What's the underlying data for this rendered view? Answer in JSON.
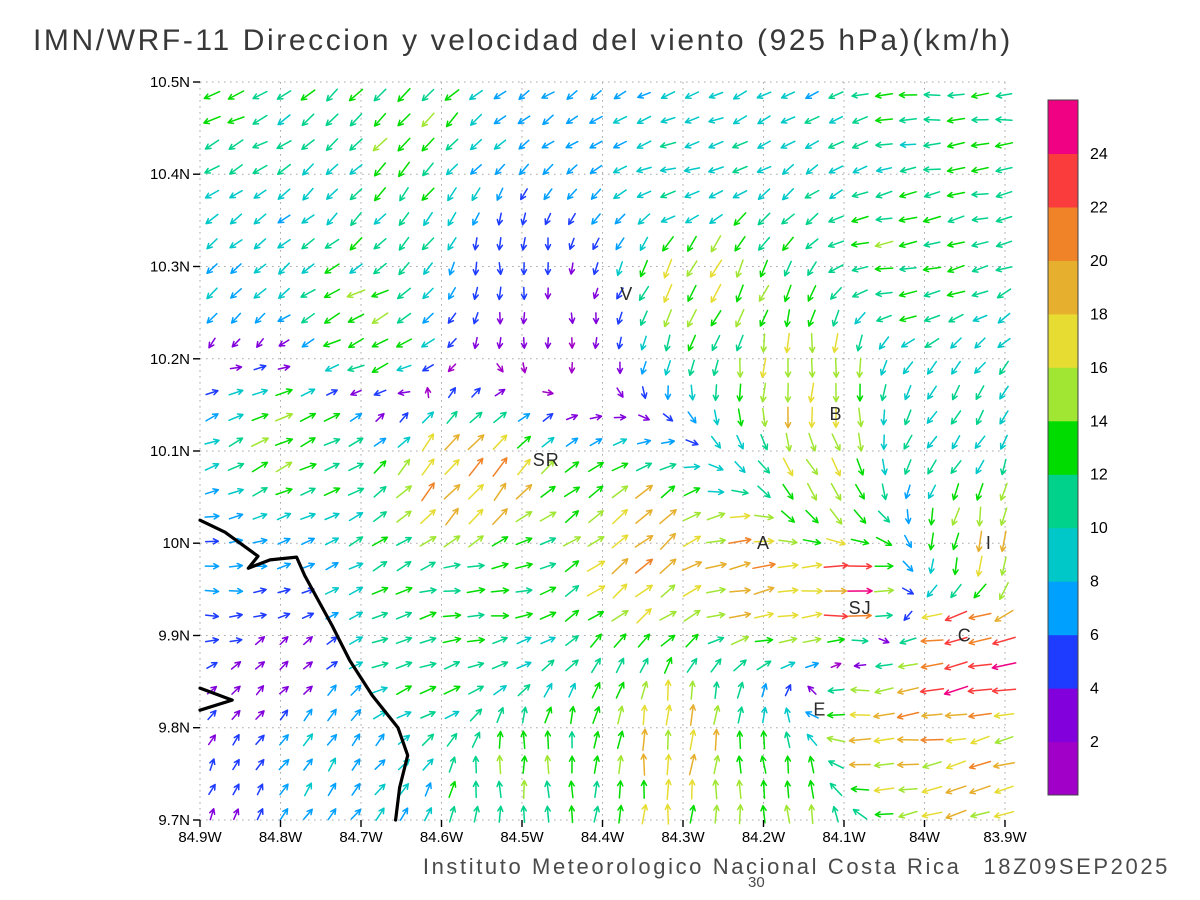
{
  "title": "IMN/WRF-11 Direccion y velocidad del viento (925 hPa)(km/h)",
  "footer": {
    "credit": "Instituto Meteorologico Nacional Costa Rica",
    "timestamp": "18Z09SEP2025",
    "run_label": "30"
  },
  "chart_data": {
    "type": "vector_field",
    "model": "IMN/WRF-11",
    "variable": "Direccion y velocidad del viento",
    "level": "925 hPa",
    "units": "km/h",
    "valid_time": "18Z09SEP2025",
    "forecast_hour": "30",
    "lon_range": [
      -84.9,
      -83.9
    ],
    "lat_range": [
      9.7,
      10.5
    ],
    "grid_step_deg": 0.1,
    "x_ticks": [
      {
        "lon": -84.9,
        "label": "84.9W"
      },
      {
        "lon": -84.8,
        "label": "84.8W"
      },
      {
        "lon": -84.7,
        "label": "84.7W"
      },
      {
        "lon": -84.6,
        "label": "84.6W"
      },
      {
        "lon": -84.5,
        "label": "84.5W"
      },
      {
        "lon": -84.4,
        "label": "84.4W"
      },
      {
        "lon": -84.3,
        "label": "84.3W"
      },
      {
        "lon": -84.2,
        "label": "84.2W"
      },
      {
        "lon": -84.1,
        "label": "84.1W"
      },
      {
        "lon": -84.0,
        "label": "84W"
      },
      {
        "lon": -83.9,
        "label": "83.9W"
      }
    ],
    "y_ticks": [
      {
        "lat": 10.5,
        "label": "10.5N"
      },
      {
        "lat": 10.4,
        "label": "10.4N"
      },
      {
        "lat": 10.3,
        "label": "10.3N"
      },
      {
        "lat": 10.2,
        "label": "10.2N"
      },
      {
        "lat": 10.1,
        "label": "10.1N"
      },
      {
        "lat": 10.0,
        "label": "10N"
      },
      {
        "lat": 9.9,
        "label": "9.9N"
      },
      {
        "lat": 9.8,
        "label": "9.8N"
      },
      {
        "lat": 9.7,
        "label": "9.7N"
      }
    ],
    "colorbar": {
      "values": [
        2,
        4,
        6,
        8,
        10,
        12,
        14,
        16,
        18,
        20,
        22,
        24
      ],
      "colors": [
        "#A000C8",
        "#8200DC",
        "#1E3CFF",
        "#00A0FF",
        "#00C8C8",
        "#00D28C",
        "#00DC00",
        "#A0E632",
        "#E6DC32",
        "#E6AF2D",
        "#F08228",
        "#FA3C3C",
        "#F00082"
      ]
    },
    "city_labels": [
      {
        "text": "V",
        "lon": -84.37,
        "lat": 10.27
      },
      {
        "text": "B",
        "lon": -84.11,
        "lat": 10.14
      },
      {
        "text": "SR",
        "lon": -84.47,
        "lat": 10.09
      },
      {
        "text": "A",
        "lon": -84.2,
        "lat": 10.0
      },
      {
        "text": "SJ",
        "lon": -84.08,
        "lat": 9.93
      },
      {
        "text": "C",
        "lon": -83.95,
        "lat": 9.9
      },
      {
        "text": "E",
        "lon": -84.13,
        "lat": 9.82
      },
      {
        "text": "I",
        "lon": -83.92,
        "lat": 10.0
      }
    ],
    "coastline": [
      [
        [
          -84.9,
          10.025
        ],
        [
          -84.869,
          10.012
        ],
        [
          -84.828,
          9.986
        ],
        [
          -84.84,
          9.973
        ],
        [
          -84.813,
          9.982
        ],
        [
          -84.78,
          9.985
        ],
        [
          -84.77,
          9.965
        ],
        [
          -84.753,
          9.938
        ],
        [
          -84.736,
          9.911
        ],
        [
          -84.714,
          9.873
        ],
        [
          -84.686,
          9.835
        ],
        [
          -84.654,
          9.8
        ],
        [
          -84.642,
          9.77
        ],
        [
          -84.652,
          9.735
        ],
        [
          -84.657,
          9.7
        ]
      ],
      [
        [
          -84.9,
          9.843
        ],
        [
          -84.86,
          9.83
        ],
        [
          -84.9,
          9.819
        ]
      ]
    ],
    "vector_grid": {
      "cols": 34,
      "rows": 30
    },
    "flow_control_points": [
      {
        "lon": -84.88,
        "lat": 10.47,
        "dir_deg": 205,
        "speed": 12
      },
      {
        "lon": -84.45,
        "lat": 10.47,
        "dir_deg": 215,
        "speed": 7
      },
      {
        "lon": -83.95,
        "lat": 10.47,
        "dir_deg": 185,
        "speed": 12
      },
      {
        "lon": -84.85,
        "lat": 10.32,
        "dir_deg": 220,
        "speed": 9
      },
      {
        "lon": -84.52,
        "lat": 10.3,
        "dir_deg": 270,
        "speed": 5
      },
      {
        "lon": -84.45,
        "lat": 10.24,
        "dir_deg": 270,
        "speed": 2
      },
      {
        "lon": -84.28,
        "lat": 10.28,
        "dir_deg": 245,
        "speed": 16
      },
      {
        "lon": -84.02,
        "lat": 10.3,
        "dir_deg": 190,
        "speed": 13
      },
      {
        "lon": -84.15,
        "lat": 10.17,
        "dir_deg": 265,
        "speed": 18
      },
      {
        "lon": -84.78,
        "lat": 10.12,
        "dir_deg": 25,
        "speed": 14
      },
      {
        "lon": -84.57,
        "lat": 10.06,
        "dir_deg": 50,
        "speed": 21
      },
      {
        "lon": -84.88,
        "lat": 9.95,
        "dir_deg": 0,
        "speed": 7
      },
      {
        "lon": -84.8,
        "lat": 9.86,
        "dir_deg": 45,
        "speed": 3
      },
      {
        "lon": -84.88,
        "lat": 9.73,
        "dir_deg": 65,
        "speed": 4
      },
      {
        "lon": -84.55,
        "lat": 9.95,
        "dir_deg": 5,
        "speed": 12
      },
      {
        "lon": -84.35,
        "lat": 10.0,
        "dir_deg": 40,
        "speed": 19
      },
      {
        "lon": -84.2,
        "lat": 9.97,
        "dir_deg": 10,
        "speed": 20
      },
      {
        "lon": -84.1,
        "lat": 9.95,
        "dir_deg": 5,
        "speed": 22
      },
      {
        "lon": -83.95,
        "lat": 9.88,
        "dir_deg": 190,
        "speed": 24
      },
      {
        "lon": -84.05,
        "lat": 9.8,
        "dir_deg": 185,
        "speed": 20
      },
      {
        "lon": -84.5,
        "lat": 9.74,
        "dir_deg": 90,
        "speed": 13
      },
      {
        "lon": -84.3,
        "lat": 9.78,
        "dir_deg": 85,
        "speed": 18
      },
      {
        "lon": -84.75,
        "lat": 9.78,
        "dir_deg": 55,
        "speed": 8
      },
      {
        "lon": -83.98,
        "lat": 10.1,
        "dir_deg": 235,
        "speed": 10
      },
      {
        "lon": -83.92,
        "lat": 10.0,
        "dir_deg": 260,
        "speed": 16
      },
      {
        "lon": -84.65,
        "lat": 10.45,
        "dir_deg": 225,
        "speed": 13
      },
      {
        "lon": -84.3,
        "lat": 10.4,
        "dir_deg": 195,
        "speed": 10
      },
      {
        "lon": -84.7,
        "lat": 10.23,
        "dir_deg": 205,
        "speed": 15
      },
      {
        "lon": -84.62,
        "lat": 9.88,
        "dir_deg": 20,
        "speed": 13
      },
      {
        "lon": -84.13,
        "lat": 10.06,
        "dir_deg": 300,
        "speed": 16
      },
      {
        "lon": -84.65,
        "lat": 10.35,
        "dir_deg": 230,
        "speed": 11
      },
      {
        "lon": -84.18,
        "lat": 9.72,
        "dir_deg": 95,
        "speed": 14
      },
      {
        "lon": -83.93,
        "lat": 9.72,
        "dir_deg": 200,
        "speed": 18
      }
    ]
  }
}
